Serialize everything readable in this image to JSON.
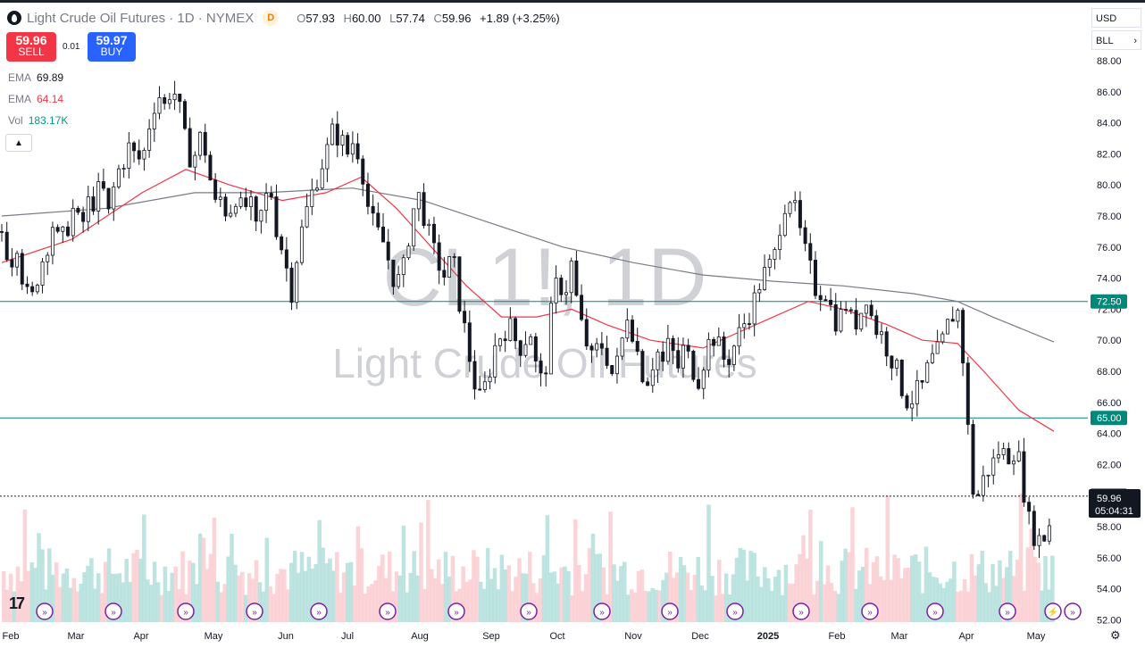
{
  "header": {
    "title": "Light Crude Oil Futures · 1D · NYMEX",
    "delayed_badge": "D",
    "ohlc": {
      "o_label": "O",
      "o": "57.93",
      "h_label": "H",
      "h": "60.00",
      "l_label": "L",
      "l": "57.74",
      "c_label": "C",
      "c": "59.96",
      "change": "+1.89 (+3.25%)"
    }
  },
  "trade": {
    "sell_price": "59.96",
    "sell_label": "SELL",
    "spread": "0.01",
    "buy_price": "59.97",
    "buy_label": "BUY"
  },
  "indicators": [
    {
      "label": "EMA",
      "value": "69.89",
      "color": "#787b86"
    },
    {
      "label": "EMA",
      "value": "64.14",
      "color": "#f23645"
    },
    {
      "label": "Vol",
      "value": "183.17K",
      "color": "#089981"
    }
  ],
  "collapse_icon": "chevron-up-icon",
  "top_right": {
    "currency": "USD",
    "unit": "BLL"
  },
  "watermark": {
    "symbol": "CL1!, 1D",
    "name": "Light Crude Oil Futures"
  },
  "price_badges": {
    "last": "59.96",
    "countdown": "05:04:31"
  },
  "colors": {
    "up": "#089981",
    "down": "#f23645",
    "ema200": "#787b86",
    "ema50": "#f23645",
    "hline": "#00897b",
    "badge_blue": "#2962ff"
  },
  "chart_data": {
    "type": "candlestick",
    "title": "Light Crude Oil Futures",
    "y_axis": {
      "ylim": [
        52,
        89
      ],
      "ticks": [
        "88.00",
        "86.00",
        "84.00",
        "82.00",
        "80.00",
        "78.00",
        "76.00",
        "74.00",
        "72.00",
        "70.00",
        "68.00",
        "66.00",
        "64.00",
        "62.00",
        "60.00",
        "58.00",
        "56.00",
        "54.00",
        "52.00"
      ]
    },
    "x_axis": {
      "labels": [
        "Feb",
        "Mar",
        "Apr",
        "May",
        "Jun",
        "Jul",
        "Aug",
        "Sep",
        "Oct",
        "Nov",
        "Dec",
        "2025",
        "Feb",
        "Mar",
        "Apr",
        "May"
      ]
    },
    "close_series": [
      [
        0,
        77.0
      ],
      [
        5,
        75.0
      ],
      [
        9,
        76.5
      ],
      [
        13,
        73.0
      ],
      [
        17,
        72.5
      ],
      [
        21,
        74.5
      ],
      [
        25,
        75.8
      ],
      [
        29,
        77.5
      ],
      [
        33,
        76.0
      ],
      [
        37,
        77.2
      ],
      [
        41,
        78.5
      ],
      [
        45,
        77.0
      ],
      [
        49,
        78.8
      ],
      [
        53,
        79.0
      ],
      [
        57,
        80.0
      ],
      [
        61,
        78.0
      ],
      [
        65,
        80.5
      ],
      [
        69,
        81.5
      ],
      [
        73,
        82.5
      ],
      [
        77,
        81.5
      ],
      [
        81,
        82.0
      ],
      [
        85,
        84.5
      ],
      [
        89,
        86.0
      ],
      [
        93,
        85.0
      ],
      [
        97,
        86.5
      ],
      [
        101,
        85.0
      ],
      [
        105,
        82.5
      ],
      [
        109,
        81.5
      ],
      [
        113,
        83.0
      ],
      [
        117,
        82.0
      ],
      [
        121,
        78.5
      ],
      [
        125,
        79.2
      ],
      [
        129,
        78.0
      ],
      [
        133,
        79.5
      ],
      [
        137,
        78.2
      ],
      [
        141,
        79.0
      ],
      [
        145,
        77.0
      ],
      [
        149,
        78.5
      ],
      [
        153,
        80.0
      ],
      [
        157,
        77.0
      ],
      [
        161,
        75.5
      ],
      [
        165,
        73.0
      ],
      [
        169,
        76.0
      ],
      [
        173,
        78.0
      ],
      [
        177,
        79.5
      ],
      [
        181,
        81.0
      ],
      [
        185,
        82.0
      ],
      [
        189,
        83.5
      ],
      [
        193,
        83.0
      ],
      [
        197,
        82.0
      ],
      [
        201,
        83.0
      ],
      [
        205,
        81.5
      ],
      [
        209,
        78.5
      ],
      [
        213,
        77.0
      ],
      [
        217,
        76.5
      ],
      [
        221,
        75.0
      ],
      [
        225,
        73.5
      ],
      [
        229,
        74.5
      ],
      [
        233,
        77.5
      ],
      [
        237,
        79.5
      ],
      [
        241,
        78.0
      ],
      [
        245,
        76.0
      ],
      [
        249,
        75.0
      ],
      [
        253,
        74.0
      ],
      [
        257,
        75.5
      ],
      [
        261,
        72.5
      ],
      [
        265,
        70.0
      ],
      [
        269,
        67.5
      ],
      [
        273,
        66.0
      ],
      [
        277,
        67.5
      ],
      [
        281,
        69.5
      ],
      [
        285,
        70.5
      ],
      [
        289,
        71.0
      ],
      [
        293,
        70.0
      ],
      [
        297,
        69.5
      ],
      [
        301,
        71.0
      ],
      [
        305,
        68.0
      ],
      [
        309,
        67.0
      ],
      [
        313,
        71.5
      ],
      [
        317,
        74.0
      ],
      [
        321,
        73.0
      ],
      [
        325,
        75.0
      ],
      [
        329,
        71.5
      ],
      [
        333,
        70.0
      ],
      [
        337,
        68.5
      ],
      [
        341,
        70.0
      ],
      [
        345,
        69.0
      ],
      [
        349,
        67.5
      ],
      [
        353,
        69.5
      ],
      [
        357,
        72.0
      ],
      [
        361,
        70.0
      ],
      [
        365,
        68.0
      ],
      [
        369,
        67.5
      ],
      [
        373,
        69.5
      ],
      [
        377,
        68.5
      ],
      [
        381,
        70.0
      ],
      [
        385,
        68.0
      ],
      [
        389,
        69.5
      ],
      [
        393,
        68.5
      ],
      [
        397,
        67.5
      ],
      [
        401,
        69.0
      ],
      [
        405,
        70.5
      ],
      [
        409,
        69.5
      ],
      [
        413,
        68.5
      ],
      [
        417,
        69.5
      ],
      [
        421,
        70.5
      ],
      [
        425,
        71.5
      ],
      [
        429,
        72.5
      ],
      [
        433,
        74.0
      ],
      [
        437,
        74.5
      ],
      [
        441,
        75.5
      ],
      [
        445,
        78.5
      ],
      [
        449,
        79.5
      ],
      [
        453,
        78.0
      ],
      [
        457,
        76.0
      ],
      [
        461,
        74.5
      ],
      [
        465,
        73.0
      ],
      [
        469,
        73.5
      ],
      [
        473,
        72.0
      ],
      [
        477,
        71.0
      ],
      [
        481,
        72.5
      ],
      [
        485,
        71.0
      ],
      [
        489,
        71.5
      ],
      [
        493,
        73.0
      ],
      [
        497,
        71.0
      ],
      [
        501,
        70.5
      ],
      [
        505,
        69.5
      ],
      [
        509,
        68.5
      ],
      [
        513,
        67.0
      ],
      [
        517,
        66.0
      ],
      [
        521,
        66.5
      ],
      [
        525,
        67.0
      ],
      [
        529,
        68.5
      ],
      [
        533,
        69.0
      ],
      [
        537,
        70.0
      ],
      [
        541,
        71.5
      ],
      [
        545,
        72.0
      ],
      [
        549,
        68.0
      ],
      [
        553,
        60.5
      ],
      [
        557,
        60.0
      ],
      [
        561,
        61.5
      ],
      [
        565,
        62.0
      ],
      [
        569,
        63.0
      ],
      [
        573,
        62.5
      ],
      [
        577,
        63.0
      ],
      [
        581,
        62.0
      ],
      [
        585,
        58.5
      ],
      [
        589,
        57.5
      ],
      [
        593,
        57.0
      ],
      [
        597,
        58.0
      ],
      [
        600,
        59.96
      ]
    ],
    "ema50": [
      [
        0,
        75.0
      ],
      [
        40,
        76.5
      ],
      [
        80,
        79.5
      ],
      [
        105,
        81.0
      ],
      [
        130,
        80.0
      ],
      [
        160,
        79.0
      ],
      [
        185,
        79.5
      ],
      [
        205,
        80.5
      ],
      [
        225,
        78.5
      ],
      [
        245,
        76.0
      ],
      [
        265,
        73.5
      ],
      [
        285,
        71.5
      ],
      [
        305,
        71.5
      ],
      [
        325,
        72.0
      ],
      [
        345,
        71.0
      ],
      [
        370,
        70.0
      ],
      [
        400,
        69.5
      ],
      [
        420,
        70.5
      ],
      [
        440,
        71.5
      ],
      [
        460,
        72.5
      ],
      [
        480,
        72.0
      ],
      [
        505,
        71.0
      ],
      [
        525,
        70.0
      ],
      [
        545,
        69.8
      ],
      [
        560,
        68.0
      ],
      [
        580,
        65.5
      ],
      [
        600,
        64.14
      ]
    ],
    "ema200": [
      [
        0,
        78.0
      ],
      [
        60,
        78.5
      ],
      [
        110,
        79.5
      ],
      [
        150,
        79.5
      ],
      [
        200,
        79.8
      ],
      [
        240,
        79.0
      ],
      [
        280,
        77.5
      ],
      [
        320,
        76.0
      ],
      [
        360,
        75.0
      ],
      [
        400,
        74.2
      ],
      [
        440,
        73.8
      ],
      [
        480,
        73.5
      ],
      [
        520,
        73.0
      ],
      [
        545,
        72.5
      ],
      [
        565,
        71.5
      ],
      [
        600,
        69.89
      ]
    ],
    "horizontal_levels": [
      "72.50",
      "65.00"
    ],
    "current_level": "60.00",
    "last_price": "59.96",
    "volume_label": "183.17K"
  }
}
